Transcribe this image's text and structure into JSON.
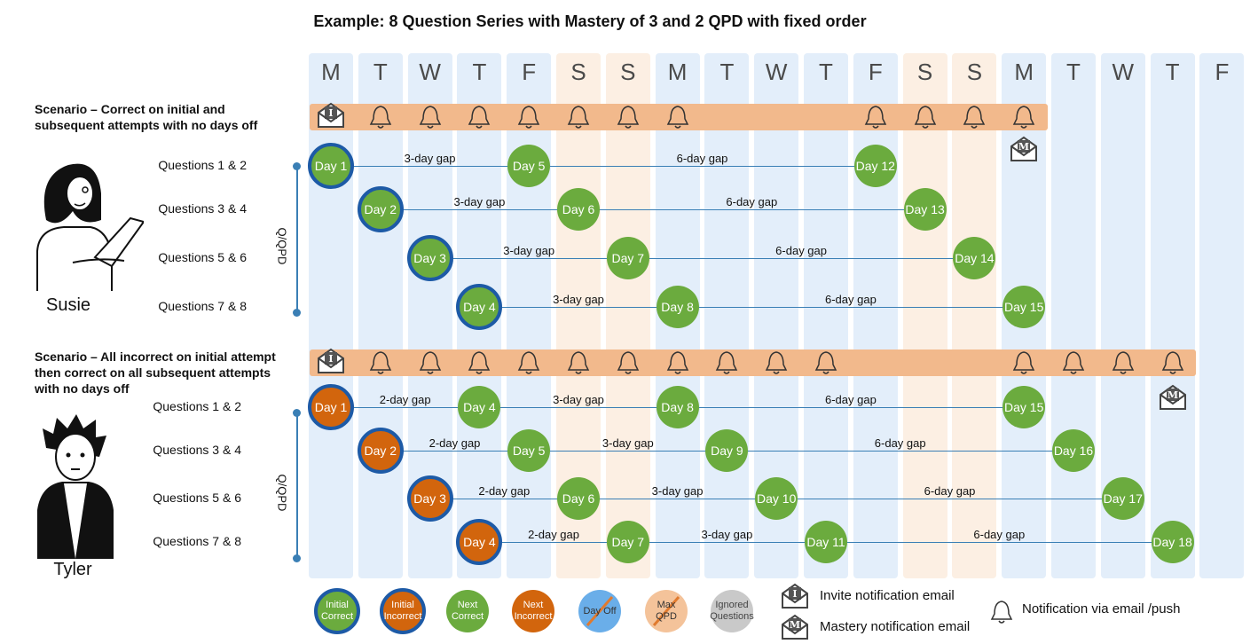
{
  "title": "Example: 8 Question Series with Mastery of 3 and 2 QPD with fixed order",
  "day_columns": [
    {
      "letter": "M",
      "type": "weekday"
    },
    {
      "letter": "T",
      "type": "weekday"
    },
    {
      "letter": "W",
      "type": "weekday"
    },
    {
      "letter": "T",
      "type": "weekday"
    },
    {
      "letter": "F",
      "type": "weekday"
    },
    {
      "letter": "S",
      "type": "weekend"
    },
    {
      "letter": "S",
      "type": "weekend"
    },
    {
      "letter": "M",
      "type": "weekday"
    },
    {
      "letter": "T",
      "type": "weekday"
    },
    {
      "letter": "W",
      "type": "weekday"
    },
    {
      "letter": "T",
      "type": "weekday"
    },
    {
      "letter": "F",
      "type": "weekday"
    },
    {
      "letter": "S",
      "type": "weekend"
    },
    {
      "letter": "S",
      "type": "weekend"
    },
    {
      "letter": "M",
      "type": "weekday"
    },
    {
      "letter": "T",
      "type": "weekday"
    },
    {
      "letter": "W",
      "type": "weekday"
    },
    {
      "letter": "T",
      "type": "weekday"
    },
    {
      "letter": "F",
      "type": "weekday"
    }
  ],
  "scenario1": {
    "label_line1": "Scenario – Correct on initial and",
    "label_line2": "subsequent attempts with no days off",
    "person": "Susie",
    "qpd_label": "Q/QPD",
    "band": {
      "invite_col": 0,
      "bell_cols": [
        1,
        2,
        3,
        4,
        5,
        6,
        7,
        11,
        12,
        13,
        14
      ],
      "mastery_col": 14
    },
    "rows": [
      {
        "label": "Questions 1 & 2",
        "nodes": [
          {
            "col": 0,
            "text": "Day 1",
            "kind": "initial-correct"
          },
          {
            "col": 4,
            "text": "Day 5",
            "kind": "next-correct"
          },
          {
            "col": 11,
            "text": "Day 12",
            "kind": "next-correct"
          }
        ],
        "gaps": [
          "3-day gap",
          "6-day gap"
        ]
      },
      {
        "label": "Questions 3 & 4",
        "nodes": [
          {
            "col": 1,
            "text": "Day 2",
            "kind": "initial-correct"
          },
          {
            "col": 5,
            "text": "Day 6",
            "kind": "next-correct"
          },
          {
            "col": 12,
            "text": "Day 13",
            "kind": "next-correct"
          }
        ],
        "gaps": [
          "3-day gap",
          "6-day gap"
        ]
      },
      {
        "label": "Questions 5 & 6",
        "nodes": [
          {
            "col": 2,
            "text": "Day 3",
            "kind": "initial-correct"
          },
          {
            "col": 6,
            "text": "Day 7",
            "kind": "next-correct"
          },
          {
            "col": 13,
            "text": "Day 14",
            "kind": "next-correct"
          }
        ],
        "gaps": [
          "3-day gap",
          "6-day gap"
        ]
      },
      {
        "label": "Questions 7 & 8",
        "nodes": [
          {
            "col": 3,
            "text": "Day 4",
            "kind": "initial-correct"
          },
          {
            "col": 7,
            "text": "Day 8",
            "kind": "next-correct"
          },
          {
            "col": 14,
            "text": "Day 15",
            "kind": "next-correct"
          }
        ],
        "gaps": [
          "3-day gap",
          "6-day gap"
        ]
      }
    ]
  },
  "scenario2": {
    "label_line1": "Scenario – All incorrect on initial attempt",
    "label_line2": "then correct on all subsequent attempts",
    "label_line3": "with no days off",
    "person": "Tyler",
    "qpd_label": "Q/QPD",
    "band": {
      "invite_col": 0,
      "bell_cols": [
        1,
        2,
        3,
        4,
        5,
        6,
        7,
        8,
        9,
        10,
        14,
        15,
        16,
        17
      ],
      "mastery_col": 17
    },
    "rows": [
      {
        "label": "Questions 1 & 2",
        "nodes": [
          {
            "col": 0,
            "text": "Day 1",
            "kind": "initial-incorrect"
          },
          {
            "col": 3,
            "text": "Day 4",
            "kind": "next-correct"
          },
          {
            "col": 7,
            "text": "Day 8",
            "kind": "next-correct"
          },
          {
            "col": 14,
            "text": "Day 15",
            "kind": "next-correct"
          }
        ],
        "gaps": [
          "2-day gap",
          "3-day gap",
          "6-day gap"
        ]
      },
      {
        "label": "Questions 3 & 4",
        "nodes": [
          {
            "col": 1,
            "text": "Day 2",
            "kind": "initial-incorrect"
          },
          {
            "col": 4,
            "text": "Day 5",
            "kind": "next-correct"
          },
          {
            "col": 8,
            "text": "Day 9",
            "kind": "next-correct"
          },
          {
            "col": 15,
            "text": "Day 16",
            "kind": "next-correct"
          }
        ],
        "gaps": [
          "2-day gap",
          "3-day gap",
          "6-day gap"
        ]
      },
      {
        "label": "Questions 5 & 6",
        "nodes": [
          {
            "col": 2,
            "text": "Day 3",
            "kind": "initial-incorrect"
          },
          {
            "col": 5,
            "text": "Day 6",
            "kind": "next-correct"
          },
          {
            "col": 9,
            "text": "Day 10",
            "kind": "next-correct"
          },
          {
            "col": 16,
            "text": "Day 17",
            "kind": "next-correct"
          }
        ],
        "gaps": [
          "2-day gap",
          "3-day gap",
          "6-day gap"
        ]
      },
      {
        "label": "Questions 7 & 8",
        "nodes": [
          {
            "col": 3,
            "text": "Day 4",
            "kind": "initial-incorrect"
          },
          {
            "col": 6,
            "text": "Day 7",
            "kind": "next-correct"
          },
          {
            "col": 10,
            "text": "Day 11",
            "kind": "next-correct"
          },
          {
            "col": 17,
            "text": "Day 18",
            "kind": "next-correct"
          }
        ],
        "gaps": [
          "2-day gap",
          "3-day gap",
          "6-day gap"
        ]
      }
    ]
  },
  "legend": {
    "initial_correct": [
      "Initial",
      "Correct"
    ],
    "initial_incorrect": [
      "Initial",
      "Incorrect"
    ],
    "next_correct": [
      "Next",
      "Correct"
    ],
    "next_incorrect": [
      "Next",
      "Incorrect"
    ],
    "day_off": "Day Off",
    "max_qpd": [
      "Max",
      "QPD"
    ],
    "ignored": [
      "Ignored",
      "Questions"
    ],
    "invite_email": "Invite notification email",
    "mastery_email": "Mastery notification email",
    "notification": "Notification via email /push",
    "invite_glyph": "I",
    "mastery_glyph": "M"
  },
  "colors": {
    "green": "#6bab3e",
    "orange": "#d2650d",
    "ring": "#1d5aa6",
    "band": "#f2b98c",
    "weekday": "#e3eefa",
    "weekend": "#fcefe3"
  }
}
